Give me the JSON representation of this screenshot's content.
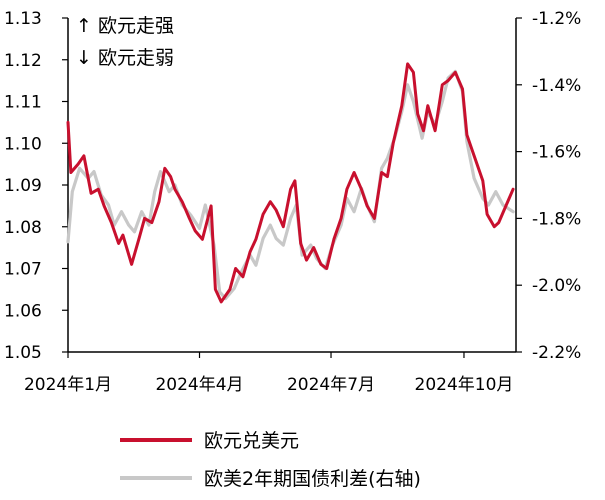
{
  "chart_data": {
    "type": "line",
    "x_tick_labels": [
      "2024年1月",
      "2024年4月",
      "2024年7月",
      "2024年10月"
    ],
    "x_tick_dates": [
      "2024-01-01",
      "2024-04-01",
      "2024-07-01",
      "2024-10-01"
    ],
    "x_range": [
      "2024-01-01",
      "2024-11-06"
    ],
    "y_left": {
      "ticks": [
        "1.13",
        "1.12",
        "1.11",
        "1.10",
        "1.09",
        "1.08",
        "1.07",
        "1.06",
        "1.05"
      ],
      "range": [
        1.05,
        1.13
      ]
    },
    "y_right": {
      "ticks": [
        "-1.2%",
        "-1.4%",
        "-1.6%",
        "-1.8%",
        "-2.0%",
        "-2.2%"
      ],
      "range": [
        -2.2,
        -1.2
      ],
      "unit": "%"
    },
    "annotations": [
      "↑ 欧元走强",
      "↓ 欧元走弱"
    ],
    "grid": false,
    "legend": {
      "position": "bottom"
    },
    "series": [
      {
        "name": "欧元兑美元",
        "axis": "left",
        "color": "#c8102e",
        "points": [
          [
            "2024-01-01",
            1.105
          ],
          [
            "2024-01-03",
            1.093
          ],
          [
            "2024-01-08",
            1.095
          ],
          [
            "2024-01-12",
            1.097
          ],
          [
            "2024-01-17",
            1.088
          ],
          [
            "2024-01-22",
            1.089
          ],
          [
            "2024-01-26",
            1.085
          ],
          [
            "2024-01-31",
            1.081
          ],
          [
            "2024-02-05",
            1.076
          ],
          [
            "2024-02-08",
            1.078
          ],
          [
            "2024-02-14",
            1.071
          ],
          [
            "2024-02-19",
            1.077
          ],
          [
            "2024-02-23",
            1.082
          ],
          [
            "2024-02-28",
            1.081
          ],
          [
            "2024-03-04",
            1.086
          ],
          [
            "2024-03-08",
            1.094
          ],
          [
            "2024-03-12",
            1.092
          ],
          [
            "2024-03-15",
            1.089
          ],
          [
            "2024-03-20",
            1.086
          ],
          [
            "2024-03-25",
            1.082
          ],
          [
            "2024-03-29",
            1.079
          ],
          [
            "2024-04-03",
            1.077
          ],
          [
            "2024-04-09",
            1.085
          ],
          [
            "2024-04-12",
            1.065
          ],
          [
            "2024-04-16",
            1.062
          ],
          [
            "2024-04-22",
            1.065
          ],
          [
            "2024-04-26",
            1.07
          ],
          [
            "2024-05-01",
            1.068
          ],
          [
            "2024-05-06",
            1.074
          ],
          [
            "2024-05-10",
            1.077
          ],
          [
            "2024-05-15",
            1.083
          ],
          [
            "2024-05-20",
            1.086
          ],
          [
            "2024-05-24",
            1.084
          ],
          [
            "2024-05-29",
            1.08
          ],
          [
            "2024-06-03",
            1.089
          ],
          [
            "2024-06-06",
            1.091
          ],
          [
            "2024-06-10",
            1.076
          ],
          [
            "2024-06-14",
            1.072
          ],
          [
            "2024-06-19",
            1.075
          ],
          [
            "2024-06-24",
            1.071
          ],
          [
            "2024-06-28",
            1.07
          ],
          [
            "2024-07-03",
            1.077
          ],
          [
            "2024-07-08",
            1.082
          ],
          [
            "2024-07-12",
            1.089
          ],
          [
            "2024-07-17",
            1.093
          ],
          [
            "2024-07-22",
            1.089
          ],
          [
            "2024-07-26",
            1.085
          ],
          [
            "2024-07-31",
            1.082
          ],
          [
            "2024-08-05",
            1.093
          ],
          [
            "2024-08-09",
            1.092
          ],
          [
            "2024-08-13",
            1.1
          ],
          [
            "2024-08-19",
            1.109
          ],
          [
            "2024-08-23",
            1.119
          ],
          [
            "2024-08-27",
            1.117
          ],
          [
            "2024-08-30",
            1.107
          ],
          [
            "2024-09-03",
            1.103
          ],
          [
            "2024-09-06",
            1.109
          ],
          [
            "2024-09-11",
            1.103
          ],
          [
            "2024-09-16",
            1.114
          ],
          [
            "2024-09-20",
            1.115
          ],
          [
            "2024-09-25",
            1.117
          ],
          [
            "2024-09-30",
            1.113
          ],
          [
            "2024-10-03",
            1.102
          ],
          [
            "2024-10-08",
            1.097
          ],
          [
            "2024-10-14",
            1.091
          ],
          [
            "2024-10-17",
            1.083
          ],
          [
            "2024-10-22",
            1.08
          ],
          [
            "2024-10-25",
            1.081
          ],
          [
            "2024-10-30",
            1.085
          ],
          [
            "2024-11-04",
            1.089
          ]
        ]
      },
      {
        "name": "欧美2年期国债利差(右轴)",
        "axis": "right",
        "color": "#c8c8c8",
        "points": [
          [
            "2024-01-01",
            -1.87
          ],
          [
            "2024-01-04",
            -1.72
          ],
          [
            "2024-01-09",
            -1.65
          ],
          [
            "2024-01-15",
            -1.68
          ],
          [
            "2024-01-19",
            -1.66
          ],
          [
            "2024-01-24",
            -1.73
          ],
          [
            "2024-01-29",
            -1.76
          ],
          [
            "2024-02-02",
            -1.82
          ],
          [
            "2024-02-07",
            -1.78
          ],
          [
            "2024-02-12",
            -1.82
          ],
          [
            "2024-02-16",
            -1.84
          ],
          [
            "2024-02-21",
            -1.78
          ],
          [
            "2024-02-26",
            -1.82
          ],
          [
            "2024-03-01",
            -1.72
          ],
          [
            "2024-03-05",
            -1.66
          ],
          [
            "2024-03-11",
            -1.72
          ],
          [
            "2024-03-15",
            -1.7
          ],
          [
            "2024-03-20",
            -1.76
          ],
          [
            "2024-03-26",
            -1.79
          ],
          [
            "2024-04-01",
            -1.83
          ],
          [
            "2024-04-05",
            -1.76
          ],
          [
            "2024-04-11",
            -1.88
          ],
          [
            "2024-04-15",
            -2.02
          ],
          [
            "2024-04-19",
            -2.04
          ],
          [
            "2024-04-25",
            -2.01
          ],
          [
            "2024-04-30",
            -1.96
          ],
          [
            "2024-05-06",
            -1.91
          ],
          [
            "2024-05-10",
            -1.94
          ],
          [
            "2024-05-15",
            -1.86
          ],
          [
            "2024-05-20",
            -1.82
          ],
          [
            "2024-05-24",
            -1.86
          ],
          [
            "2024-05-29",
            -1.88
          ],
          [
            "2024-06-03",
            -1.8
          ],
          [
            "2024-06-07",
            -1.76
          ],
          [
            "2024-06-11",
            -1.91
          ],
          [
            "2024-06-17",
            -1.88
          ],
          [
            "2024-06-21",
            -1.92
          ],
          [
            "2024-06-27",
            -1.95
          ],
          [
            "2024-07-02",
            -1.88
          ],
          [
            "2024-07-08",
            -1.82
          ],
          [
            "2024-07-12",
            -1.74
          ],
          [
            "2024-07-17",
            -1.78
          ],
          [
            "2024-07-22",
            -1.71
          ],
          [
            "2024-07-26",
            -1.76
          ],
          [
            "2024-07-31",
            -1.81
          ],
          [
            "2024-08-05",
            -1.65
          ],
          [
            "2024-08-09",
            -1.62
          ],
          [
            "2024-08-14",
            -1.56
          ],
          [
            "2024-08-19",
            -1.48
          ],
          [
            "2024-08-23",
            -1.4
          ],
          [
            "2024-08-27",
            -1.45
          ],
          [
            "2024-09-02",
            -1.56
          ],
          [
            "2024-09-06",
            -1.48
          ],
          [
            "2024-09-11",
            -1.52
          ],
          [
            "2024-09-16",
            -1.45
          ],
          [
            "2024-09-20",
            -1.38
          ],
          [
            "2024-09-25",
            -1.36
          ],
          [
            "2024-09-30",
            -1.42
          ],
          [
            "2024-10-03",
            -1.57
          ],
          [
            "2024-10-08",
            -1.68
          ],
          [
            "2024-10-14",
            -1.74
          ],
          [
            "2024-10-18",
            -1.76
          ],
          [
            "2024-10-23",
            -1.72
          ],
          [
            "2024-10-28",
            -1.76
          ],
          [
            "2024-11-04",
            -1.78
          ]
        ]
      }
    ]
  }
}
